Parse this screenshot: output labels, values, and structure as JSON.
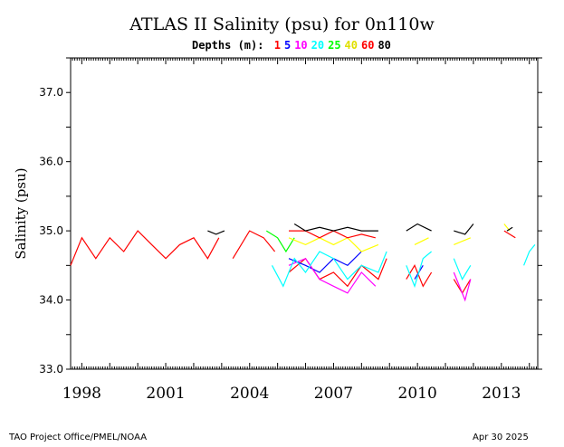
{
  "chart_data": {
    "type": "line",
    "title": "ATLAS II Salinity (psu) for 0n110w",
    "ylabel": "Salinity (psu)",
    "xlabel": "",
    "depth_legend_label": "Depths (m):",
    "ylim": [
      33.0,
      37.5
    ],
    "xlim": [
      1997.6,
      2014.3
    ],
    "y_ticks": [
      "33.0",
      "34.0",
      "35.0",
      "36.0",
      "37.0"
    ],
    "x_tick_labels": [
      "1998",
      "2001",
      "2004",
      "2007",
      "2010",
      "2013"
    ],
    "grid": false,
    "legend_placement": "top",
    "series": [
      {
        "name": "1",
        "color": "#ff0000",
        "segments": [
          [
            [
              1997.6,
              34.5
            ],
            [
              1998.0,
              34.9
            ],
            [
              1998.5,
              34.6
            ],
            [
              1999.0,
              34.9
            ],
            [
              1999.5,
              34.7
            ],
            [
              2000.0,
              35.0
            ],
            [
              2000.5,
              34.8
            ],
            [
              2001.0,
              34.6
            ],
            [
              2001.5,
              34.8
            ],
            [
              2002.0,
              34.9
            ],
            [
              2002.5,
              34.6
            ],
            [
              2002.9,
              34.9
            ]
          ],
          [
            [
              2003.4,
              34.6
            ],
            [
              2004.0,
              35.0
            ],
            [
              2004.5,
              34.9
            ],
            [
              2004.9,
              34.7
            ]
          ],
          [
            [
              2005.4,
              34.4
            ],
            [
              2006.0,
              34.6
            ],
            [
              2006.5,
              34.3
            ],
            [
              2007.0,
              34.4
            ],
            [
              2007.5,
              34.2
            ],
            [
              2008.0,
              34.5
            ],
            [
              2008.6,
              34.3
            ],
            [
              2008.9,
              34.6
            ]
          ],
          [
            [
              2009.6,
              34.3
            ],
            [
              2009.9,
              34.5
            ],
            [
              2010.2,
              34.2
            ],
            [
              2010.5,
              34.4
            ]
          ],
          [
            [
              2011.3,
              34.3
            ],
            [
              2011.6,
              34.1
            ],
            [
              2011.9,
              34.3
            ]
          ],
          [
            [
              2013.1,
              35.0
            ],
            [
              2013.5,
              34.9
            ]
          ]
        ]
      },
      {
        "name": "5",
        "color": "#0000ff",
        "segments": [
          [
            [
              2005.4,
              34.6
            ],
            [
              2006.0,
              34.5
            ],
            [
              2006.5,
              34.4
            ],
            [
              2007.0,
              34.6
            ],
            [
              2007.5,
              34.5
            ],
            [
              2008.0,
              34.7
            ]
          ],
          [
            [
              2009.9,
              34.3
            ],
            [
              2010.2,
              34.5
            ]
          ]
        ]
      },
      {
        "name": "10",
        "color": "#ff00ff",
        "segments": [
          [
            [
              2005.4,
              34.5
            ],
            [
              2006.0,
              34.6
            ],
            [
              2006.5,
              34.3
            ],
            [
              2007.0,
              34.2
            ],
            [
              2007.5,
              34.1
            ],
            [
              2008.0,
              34.4
            ],
            [
              2008.5,
              34.2
            ]
          ],
          [
            [
              2011.3,
              34.4
            ],
            [
              2011.7,
              34.0
            ],
            [
              2011.9,
              34.3
            ]
          ]
        ]
      },
      {
        "name": "20",
        "color": "#00ffff",
        "segments": [
          [
            [
              2004.8,
              34.5
            ],
            [
              2005.2,
              34.2
            ],
            [
              2005.6,
              34.6
            ],
            [
              2006.0,
              34.4
            ],
            [
              2006.5,
              34.7
            ],
            [
              2007.0,
              34.6
            ],
            [
              2007.5,
              34.3
            ],
            [
              2008.0,
              34.5
            ],
            [
              2008.6,
              34.4
            ],
            [
              2008.9,
              34.7
            ]
          ],
          [
            [
              2009.6,
              34.5
            ],
            [
              2009.9,
              34.2
            ],
            [
              2010.2,
              34.6
            ],
            [
              2010.5,
              34.7
            ]
          ],
          [
            [
              2011.3,
              34.6
            ],
            [
              2011.6,
              34.3
            ],
            [
              2011.9,
              34.5
            ]
          ],
          [
            [
              2013.8,
              34.5
            ],
            [
              2014.0,
              34.7
            ],
            [
              2014.2,
              34.8
            ]
          ]
        ]
      },
      {
        "name": "25",
        "color": "#00ff00",
        "segments": [
          [
            [
              2004.6,
              35.0
            ],
            [
              2005.0,
              34.9
            ],
            [
              2005.3,
              34.7
            ],
            [
              2005.6,
              34.9
            ]
          ]
        ]
      },
      {
        "name": "40",
        "color": "#ffff00",
        "segments": [
          [
            [
              2005.4,
              34.9
            ],
            [
              2006.0,
              34.8
            ],
            [
              2006.5,
              34.9
            ],
            [
              2007.0,
              34.8
            ],
            [
              2007.5,
              34.9
            ],
            [
              2008.0,
              34.7
            ],
            [
              2008.6,
              34.8
            ]
          ],
          [
            [
              2009.9,
              34.8
            ],
            [
              2010.4,
              34.9
            ]
          ],
          [
            [
              2011.3,
              34.8
            ],
            [
              2011.9,
              34.9
            ]
          ],
          [
            [
              2013.1,
              35.1
            ],
            [
              2013.3,
              35.0
            ]
          ]
        ]
      },
      {
        "name": "60",
        "color": "#ff0000",
        "segments": [
          [
            [
              2005.4,
              35.0
            ],
            [
              2006.0,
              35.0
            ],
            [
              2006.5,
              34.9
            ],
            [
              2007.0,
              35.0
            ],
            [
              2007.5,
              34.9
            ],
            [
              2008.0,
              34.95
            ],
            [
              2008.5,
              34.9
            ]
          ]
        ]
      },
      {
        "name": "80",
        "color": "#000000",
        "segments": [
          [
            [
              2002.5,
              35.0
            ],
            [
              2002.8,
              34.95
            ],
            [
              2003.1,
              35.0
            ]
          ],
          [
            [
              2005.6,
              35.1
            ],
            [
              2006.0,
              35.0
            ],
            [
              2006.5,
              35.05
            ],
            [
              2007.0,
              35.0
            ],
            [
              2007.5,
              35.05
            ],
            [
              2008.0,
              35.0
            ],
            [
              2008.6,
              35.0
            ]
          ],
          [
            [
              2009.6,
              35.0
            ],
            [
              2010.0,
              35.1
            ],
            [
              2010.5,
              35.0
            ]
          ],
          [
            [
              2011.3,
              35.0
            ],
            [
              2011.7,
              34.95
            ],
            [
              2012.0,
              35.1
            ]
          ],
          [
            [
              2013.2,
              35.0
            ],
            [
              2013.4,
              35.05
            ]
          ]
        ]
      }
    ]
  },
  "footer": {
    "left": "TAO Project Office/PMEL/NOAA",
    "right": "Apr 30 2025"
  }
}
